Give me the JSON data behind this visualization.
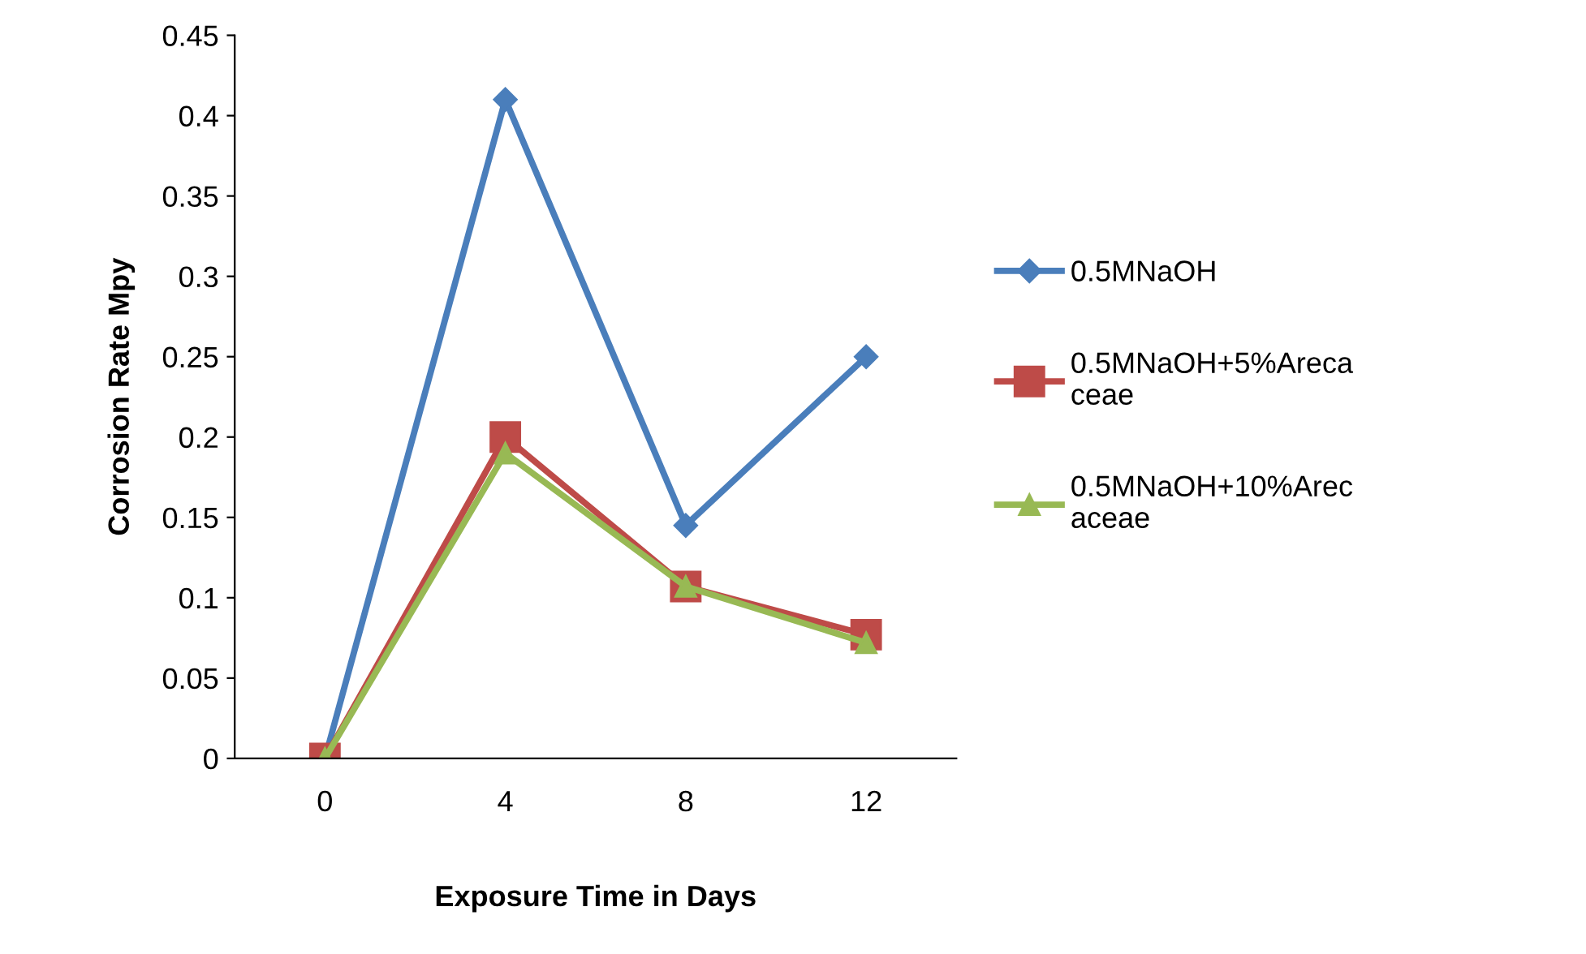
{
  "chart_data": {
    "type": "line",
    "xlabel": "Exposure Time in Days",
    "ylabel": "Corrosion Rate Mpy",
    "categories": [
      "0",
      "4",
      "8",
      "12"
    ],
    "series": [
      {
        "name": "0.5MNaOH",
        "color": "#4a7ebb",
        "marker": "diamond",
        "values": [
          0,
          0.41,
          0.145,
          0.25
        ]
      },
      {
        "name": "0.5MNaOH+5%Areca\nceae",
        "color": "#be4b48",
        "marker": "square",
        "values": [
          0,
          0.2,
          0.107,
          0.077
        ]
      },
      {
        "name": "0.5MNaOH+10%Arec\naceae",
        "color": "#98b954",
        "marker": "triangle",
        "values": [
          0,
          0.19,
          0.107,
          0.072
        ]
      }
    ],
    "ylim": [
      0,
      0.45
    ],
    "yticks": [
      0,
      0.05,
      0.1,
      0.15,
      0.2,
      0.25,
      0.3,
      0.35,
      0.4,
      0.45
    ],
    "grid": false,
    "legend": "right",
    "line_style": "solid"
  }
}
